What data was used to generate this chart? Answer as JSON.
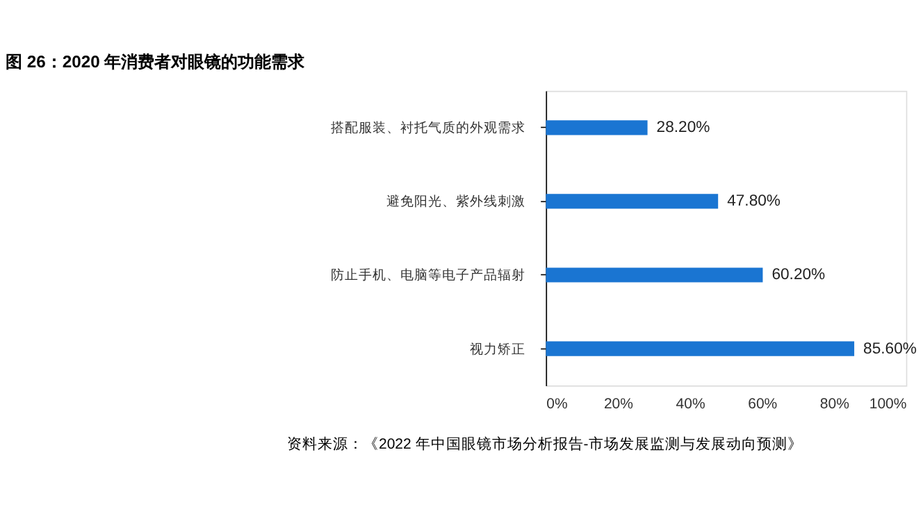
{
  "chart_data": {
    "type": "bar",
    "orientation": "horizontal",
    "title": "图 26：2020 年消费者对眼镜的功能需求",
    "categories": [
      "搭配服装、衬托气质的外观需求",
      "避免阳光、紫外线刺激",
      "防止手机、电脑等电子产品辐射",
      "视力矫正"
    ],
    "values": [
      28.2,
      47.8,
      60.2,
      85.6
    ],
    "value_labels": [
      "28.20%",
      "47.80%",
      "60.20%",
      "85.60%"
    ],
    "color": "#1a75d2",
    "xlim": [
      0,
      100
    ],
    "xticks": [
      {
        "value": 0,
        "label": "0%"
      },
      {
        "value": 20,
        "label": "20%"
      },
      {
        "value": 40,
        "label": "40%"
      },
      {
        "value": 60,
        "label": "60%"
      },
      {
        "value": 80,
        "label": "80%"
      },
      {
        "value": 100,
        "label": "100%"
      }
    ],
    "grid": false,
    "annotations": [
      "资料来源：《2022 年中国眼镜市场分析报告-市场发展监测与发展动向预测》"
    ]
  }
}
